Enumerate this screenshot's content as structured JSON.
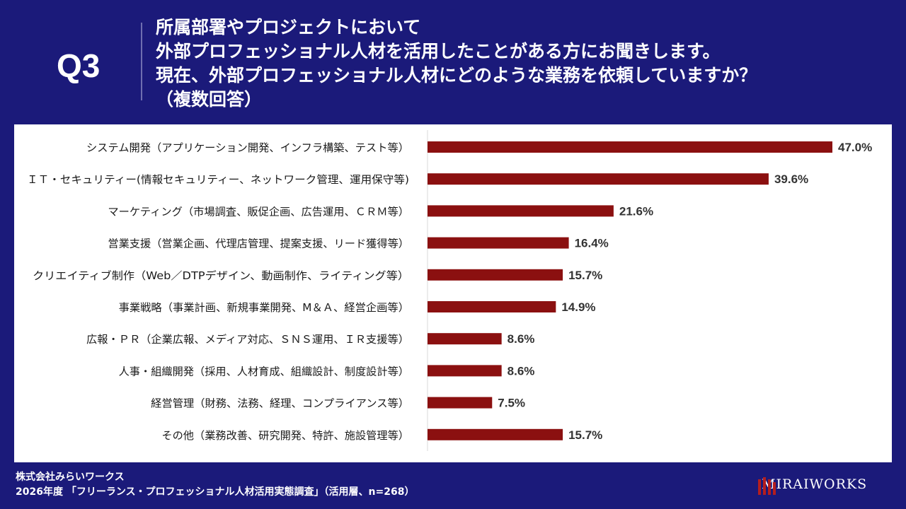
{
  "header": {
    "q_label": "Q3",
    "question_lines": [
      "所属部署やプロジェクトにおいて",
      "外部プロフェッショナル人材を活用したことがある方にお聞きします。",
      "現在、外部プロフェッショナル人材にどのような業務を依頼していますか？",
      "（複数回答）"
    ]
  },
  "chart_data": {
    "type": "bar",
    "orientation": "horizontal",
    "categories": [
      "システム開発（アプリケーション開発、インフラ構築、テスト等）",
      "ＩＴ・セキュリティー(情報セキュリティー、ネットワーク管理、運用保守等)",
      "マーケティング（市場調査、販促企画、広告運用、ＣＲＭ等）",
      "営業支援（営業企画、代理店管理、提案支援、リード獲得等）",
      "クリエイティブ制作（Web／DTPデザイン、動画制作、ライティング等）",
      "事業戦略（事業計画、新規事業開発、M＆Ａ、経営企画等）",
      "広報・ＰＲ（企業広報、メディア対応、ＳＮＳ運用、ＩＲ支援等）",
      "人事・組織開発（採用、人材育成、組織設計、制度設計等）",
      "経営管理（財務、法務、経理、コンプライアンス等）",
      "その他（業務改善、研究開発、特許、施設管理等）"
    ],
    "values": [
      47.0,
      39.6,
      21.6,
      16.4,
      15.7,
      14.9,
      8.6,
      8.6,
      7.5,
      15.7
    ],
    "value_labels": [
      "47.0%",
      "39.6%",
      "21.6%",
      "16.4%",
      "15.7%",
      "14.9%",
      "8.6%",
      "8.6%",
      "7.5%",
      "15.7%"
    ],
    "xlim": [
      0,
      47.0
    ],
    "bar_color": "#8b1010"
  },
  "footer": {
    "company": "株式会社みらいワークス",
    "source": "2026年度 「フリーランス・プロフェッショナル人材活用実態調査」（活用層、n=268）"
  },
  "logo": {
    "text": "MIRAIWORKS"
  },
  "colors": {
    "background": "#1b1a7a",
    "bar": "#8b1010",
    "panel": "#ffffff"
  }
}
